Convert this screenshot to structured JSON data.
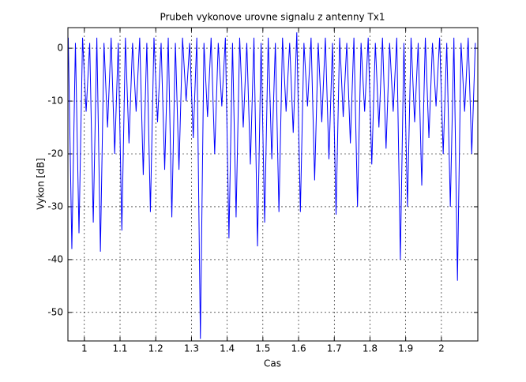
{
  "chart_data": {
    "type": "line",
    "title": "Prubeh vykonove urovne signalu z antenny Tx1",
    "x_label": "Cas",
    "y_label": "Vykon [dB]",
    "xlim": [
      0.954,
      2.102
    ],
    "ylim": [
      -55.4,
      3.9
    ],
    "xticks": [
      1,
      1.1,
      1.2,
      1.3,
      1.4,
      1.5,
      1.6,
      1.7,
      1.8,
      1.9,
      2
    ],
    "yticks": [
      -50,
      -40,
      -30,
      -20,
      -10,
      0
    ],
    "grid": true,
    "x": [
      0.955,
      0.965,
      0.975,
      0.985,
      0.995,
      1.005,
      1.015,
      1.025,
      1.035,
      1.045,
      1.055,
      1.065,
      1.075,
      1.085,
      1.095,
      1.105,
      1.115,
      1.125,
      1.135,
      1.145,
      1.155,
      1.165,
      1.175,
      1.185,
      1.195,
      1.205,
      1.215,
      1.225,
      1.235,
      1.245,
      1.255,
      1.265,
      1.275,
      1.285,
      1.295,
      1.305,
      1.315,
      1.325,
      1.335,
      1.345,
      1.355,
      1.365,
      1.375,
      1.385,
      1.395,
      1.405,
      1.415,
      1.425,
      1.435,
      1.445,
      1.455,
      1.465,
      1.475,
      1.485,
      1.495,
      1.505,
      1.515,
      1.525,
      1.535,
      1.545,
      1.555,
      1.565,
      1.575,
      1.585,
      1.595,
      1.605,
      1.615,
      1.625,
      1.635,
      1.645,
      1.655,
      1.665,
      1.675,
      1.685,
      1.695,
      1.705,
      1.715,
      1.725,
      1.735,
      1.745,
      1.755,
      1.765,
      1.775,
      1.785,
      1.795,
      1.805,
      1.815,
      1.825,
      1.835,
      1.845,
      1.855,
      1.865,
      1.875,
      1.885,
      1.895,
      1.905,
      1.915,
      1.925,
      1.935,
      1.945,
      1.955,
      1.965,
      1.975,
      1.985,
      1.995,
      2.005,
      2.015,
      2.025,
      2.035,
      2.045,
      2.055,
      2.065,
      2.075,
      2.085,
      2.095
    ],
    "series": [
      {
        "color": "#0000ff",
        "values": [
          2,
          -38,
          1,
          -35,
          2,
          -12,
          1,
          -33,
          2,
          -38.5,
          1,
          -15,
          2,
          -20,
          1,
          -34.5,
          2,
          -18,
          1,
          -12,
          2,
          -24,
          1,
          -31,
          2,
          -14,
          1,
          -23,
          2,
          -32,
          1,
          -23,
          2,
          -10,
          1,
          -17,
          2,
          -55,
          1,
          -13,
          2,
          -20,
          1,
          -11,
          2,
          -36,
          1,
          -32,
          2,
          -15,
          1,
          -22,
          2,
          -37.5,
          1,
          -33,
          2,
          -21,
          1,
          -31,
          2,
          -12,
          1,
          -16,
          3,
          -31,
          1,
          -11,
          2,
          -25,
          1,
          -14,
          2,
          -21,
          1,
          -31.5,
          2,
          -13,
          1,
          -18,
          2,
          -30,
          1,
          -12,
          2,
          -22,
          1,
          -15,
          2,
          -19,
          1,
          -12,
          2,
          -40,
          1,
          -30,
          2,
          -14,
          1,
          -26,
          2,
          -17,
          1,
          -11,
          2,
          -20,
          1,
          -30,
          2,
          -44,
          1,
          -12,
          2,
          -20,
          1
        ]
      }
    ]
  }
}
